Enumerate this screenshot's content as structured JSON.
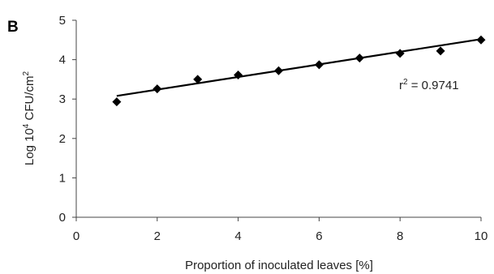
{
  "chart_data": {
    "type": "scatter",
    "panel_label": "B",
    "xlabel": "Proportion of inoculated leaves [%]",
    "ylabel": {
      "prefix": "Log 10",
      "sup1": "4",
      "mid": " CFU/cm",
      "sup2": "2"
    },
    "xlim": [
      0,
      10
    ],
    "ylim": [
      0,
      5
    ],
    "xticks": [
      0,
      2,
      4,
      6,
      8,
      10
    ],
    "yticks": [
      0,
      1,
      2,
      3,
      4,
      5
    ],
    "grid": false,
    "series": [
      {
        "marker": "diamond",
        "color": "#000000",
        "x": [
          1,
          2,
          3,
          4,
          5,
          6,
          7,
          8,
          9,
          10
        ],
        "y": [
          2.93,
          3.26,
          3.5,
          3.61,
          3.72,
          3.87,
          4.04,
          4.16,
          4.22,
          4.5
        ]
      }
    ],
    "trendline": {
      "x": [
        1,
        10
      ],
      "y": [
        3.08,
        4.52
      ],
      "color": "#000000"
    },
    "annotation": {
      "prefix": "r",
      "sup": "2",
      "suffix": " = 0.9741"
    }
  }
}
